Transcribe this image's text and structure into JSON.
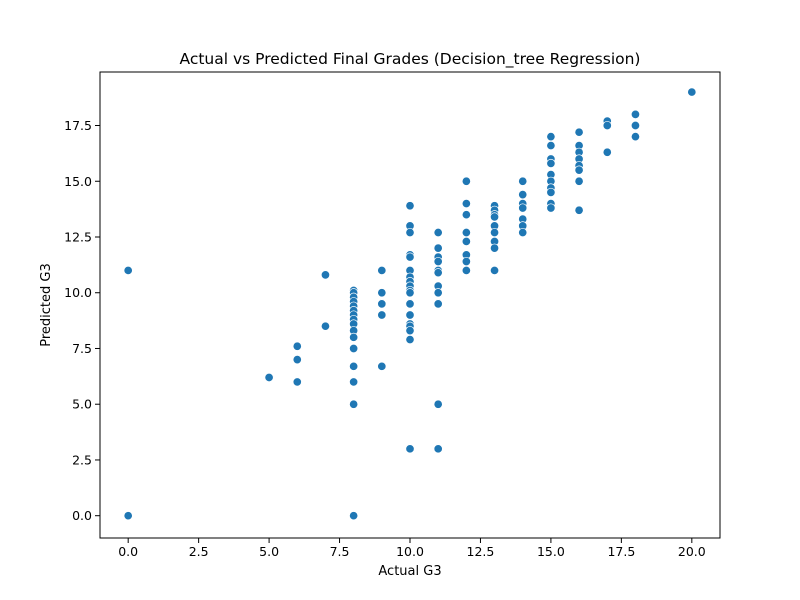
{
  "chart_data": {
    "type": "scatter",
    "title": "Actual vs Predicted Final Grades (Decision_tree Regression)",
    "xlabel": "Actual G3",
    "ylabel": "Predicted G3",
    "xlim": [
      -1,
      21
    ],
    "ylim": [
      -1,
      19.9
    ],
    "xticks": [
      0.0,
      2.5,
      5.0,
      7.5,
      10.0,
      12.5,
      15.0,
      17.5,
      20.0
    ],
    "yticks": [
      0.0,
      2.5,
      5.0,
      7.5,
      10.0,
      12.5,
      15.0,
      17.5
    ],
    "xtick_labels": [
      "0.0",
      "2.5",
      "5.0",
      "7.5",
      "10.0",
      "12.5",
      "15.0",
      "17.5",
      "20.0"
    ],
    "ytick_labels": [
      "0.0",
      "2.5",
      "5.0",
      "7.5",
      "10.0",
      "12.5",
      "15.0",
      "17.5"
    ],
    "grid": false,
    "marker_color": "#1f77b4",
    "points": [
      [
        0,
        11.0
      ],
      [
        0,
        0.0
      ],
      [
        5,
        6.2
      ],
      [
        6,
        7.6
      ],
      [
        6,
        7.0
      ],
      [
        6,
        6.0
      ],
      [
        7,
        10.8
      ],
      [
        7,
        8.5
      ],
      [
        8,
        10.1
      ],
      [
        8,
        10.0
      ],
      [
        8,
        9.8
      ],
      [
        8,
        9.6
      ],
      [
        8,
        9.4
      ],
      [
        8,
        9.2
      ],
      [
        8,
        9.0
      ],
      [
        8,
        8.8
      ],
      [
        8,
        8.6
      ],
      [
        8,
        8.3
      ],
      [
        8,
        8.0
      ],
      [
        8,
        7.5
      ],
      [
        8,
        6.7
      ],
      [
        8,
        6.0
      ],
      [
        8,
        5.0
      ],
      [
        8,
        0.0
      ],
      [
        9,
        11.0
      ],
      [
        9,
        10.0
      ],
      [
        9,
        9.5
      ],
      [
        9,
        9.0
      ],
      [
        9,
        6.7
      ],
      [
        10,
        13.9
      ],
      [
        10,
        13.0
      ],
      [
        10,
        12.7
      ],
      [
        10,
        11.7
      ],
      [
        10,
        11.6
      ],
      [
        10,
        11.0
      ],
      [
        10,
        10.7
      ],
      [
        10,
        10.5
      ],
      [
        10,
        10.3
      ],
      [
        10,
        10.1
      ],
      [
        10,
        10.0
      ],
      [
        10,
        9.5
      ],
      [
        10,
        9.0
      ],
      [
        10,
        8.6
      ],
      [
        10,
        8.5
      ],
      [
        10,
        8.3
      ],
      [
        10,
        7.9
      ],
      [
        10,
        3.0
      ],
      [
        11,
        12.7
      ],
      [
        11,
        12.0
      ],
      [
        11,
        11.6
      ],
      [
        11,
        11.4
      ],
      [
        11,
        11.0
      ],
      [
        11,
        10.9
      ],
      [
        11,
        10.3
      ],
      [
        11,
        10.0
      ],
      [
        11,
        9.5
      ],
      [
        11,
        5.0
      ],
      [
        11,
        3.0
      ],
      [
        12,
        15.0
      ],
      [
        12,
        14.0
      ],
      [
        12,
        13.5
      ],
      [
        12,
        12.7
      ],
      [
        12,
        12.3
      ],
      [
        12,
        11.7
      ],
      [
        12,
        11.4
      ],
      [
        12,
        11.0
      ],
      [
        13,
        13.9
      ],
      [
        13,
        13.7
      ],
      [
        13,
        13.5
      ],
      [
        13,
        13.4
      ],
      [
        13,
        13.0
      ],
      [
        13,
        12.7
      ],
      [
        13,
        12.3
      ],
      [
        13,
        12.0
      ],
      [
        13,
        11.0
      ],
      [
        14,
        15.0
      ],
      [
        14,
        14.4
      ],
      [
        14,
        14.0
      ],
      [
        14,
        13.8
      ],
      [
        14,
        13.3
      ],
      [
        14,
        13.0
      ],
      [
        14,
        12.7
      ],
      [
        15,
        17.0
      ],
      [
        15,
        16.6
      ],
      [
        15,
        16.0
      ],
      [
        15,
        15.8
      ],
      [
        15,
        15.3
      ],
      [
        15,
        15.0
      ],
      [
        15,
        14.7
      ],
      [
        15,
        14.5
      ],
      [
        15,
        14.0
      ],
      [
        15,
        13.8
      ],
      [
        16,
        17.2
      ],
      [
        16,
        16.6
      ],
      [
        16,
        16.3
      ],
      [
        16,
        16.0
      ],
      [
        16,
        15.7
      ],
      [
        16,
        15.5
      ],
      [
        16,
        15.0
      ],
      [
        16,
        13.7
      ],
      [
        17,
        17.7
      ],
      [
        17,
        17.5
      ],
      [
        17,
        16.3
      ],
      [
        18,
        18.0
      ],
      [
        18,
        17.5
      ],
      [
        18,
        17.0
      ],
      [
        20,
        19.0
      ]
    ]
  }
}
